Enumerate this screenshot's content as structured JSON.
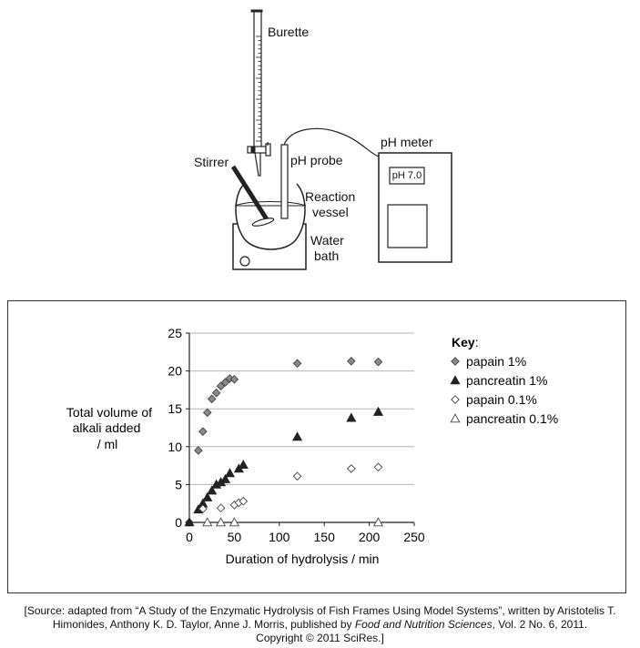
{
  "apparatus": {
    "burette_label": "Burette",
    "stirrer_label": "Stirrer",
    "ph_probe_label": "pH probe",
    "ph_meter_label": "pH meter",
    "ph_display": "pH 7.0",
    "reaction_vessel_line1": "Reaction",
    "reaction_vessel_line2": "vessel",
    "water_bath_line1": "Water",
    "water_bath_line2": "bath"
  },
  "chart_data": {
    "type": "scatter",
    "title": "",
    "xlabel": "Duration of hydrolysis / min",
    "ylabel_lines": [
      "Total volume of",
      "alkali added",
      "/ ml"
    ],
    "xlim": [
      0,
      250
    ],
    "ylim": [
      0,
      25
    ],
    "xticks": [
      0,
      50,
      100,
      150,
      200,
      250
    ],
    "yticks": [
      0,
      5,
      10,
      15,
      20,
      25
    ],
    "grid": "horizontal",
    "legend_title": "Key:",
    "legend_position": "right",
    "series": [
      {
        "name": "papain 1%",
        "marker": "diamond-filled",
        "x": [
          0,
          10,
          15,
          20,
          25,
          30,
          35,
          40,
          45,
          50,
          120,
          180,
          210
        ],
        "y": [
          0,
          9.5,
          12,
          14.5,
          16.3,
          17.1,
          18,
          18.5,
          19,
          18.9,
          21,
          21.3,
          21.2
        ]
      },
      {
        "name": "pancreatin 1%",
        "marker": "triangle-filled",
        "x": [
          0,
          10,
          15,
          20,
          25,
          30,
          35,
          40,
          45,
          55,
          60,
          120,
          180,
          210
        ],
        "y": [
          0,
          1.7,
          2.5,
          3.3,
          4.2,
          5,
          5.3,
          5.7,
          6.5,
          7.1,
          7.6,
          11.3,
          13.8,
          14.6
        ]
      },
      {
        "name": "papain 0.1%",
        "marker": "diamond-open",
        "x": [
          15,
          35,
          50,
          55,
          60,
          120,
          180,
          210
        ],
        "y": [
          1.8,
          1.9,
          2.3,
          2.6,
          2.8,
          6.1,
          7.1,
          7.3
        ]
      },
      {
        "name": "pancreatin 0.1%",
        "marker": "triangle-open",
        "x": [
          20,
          35,
          50,
          210
        ],
        "y": [
          0,
          0,
          0,
          0
        ]
      }
    ]
  },
  "source": {
    "line1": "[Source: adapted from “A Study of the Enzymatic Hydrolysis of Fish Frames Using Model Systems”, written by Aristotelis T.",
    "line2_prefix": "Himonides, Anthony K. D. Taylor, Anne J. Morris, published by ",
    "line2_journal": "Food and Nutrition Sciences",
    "line2_suffix": ", Vol. 2 No. 6, 2011.",
    "line3": "Copyright © 2011 SciRes.]"
  }
}
